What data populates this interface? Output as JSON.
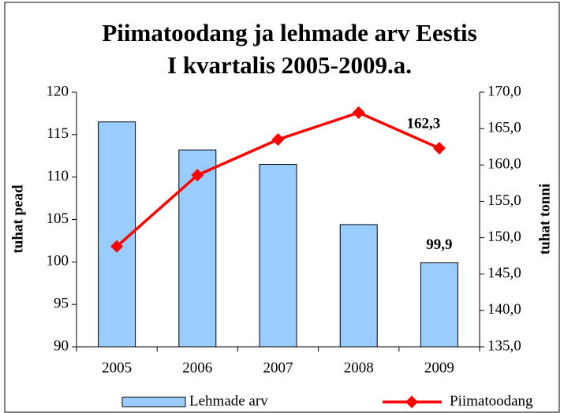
{
  "chart_data": {
    "type": "bar",
    "title": [
      "Piimatoodang ja lehmade arv Eestis",
      "I kvartalis 2005-2009.a."
    ],
    "ylabel": "tuhat pead",
    "y2label": "tuhat tonni",
    "categories": [
      "2005",
      "2006",
      "2007",
      "2008",
      "2009"
    ],
    "series": [
      {
        "name": "Lehmade arv",
        "type": "bar",
        "axis": "y",
        "color": "#99ccff",
        "values": [
          116.5,
          113.2,
          111.5,
          104.4,
          99.9
        ],
        "value_labels": [
          null,
          null,
          null,
          null,
          "99,9"
        ]
      },
      {
        "name": "Piimatoodang",
        "type": "line",
        "axis": "y2",
        "color": "#ff0000",
        "values": [
          148.8,
          158.6,
          163.5,
          167.2,
          162.3
        ],
        "value_labels": [
          null,
          null,
          null,
          null,
          "162,3"
        ]
      }
    ],
    "ylim": [
      90,
      120
    ],
    "yticks": [
      90,
      95,
      100,
      105,
      110,
      115,
      120
    ],
    "y2lim": [
      135,
      170
    ],
    "y2ticks": [
      {
        "value": 135,
        "label": "135,0"
      },
      {
        "value": 140,
        "label": "140,0"
      },
      {
        "value": 145,
        "label": "145,0"
      },
      {
        "value": 150,
        "label": "150,0"
      },
      {
        "value": 155,
        "label": "155,0"
      },
      {
        "value": 160,
        "label": "160,0"
      },
      {
        "value": 165,
        "label": "165,0"
      },
      {
        "value": 170,
        "label": "170,0"
      }
    ],
    "grid": false,
    "legend": "bottom"
  }
}
